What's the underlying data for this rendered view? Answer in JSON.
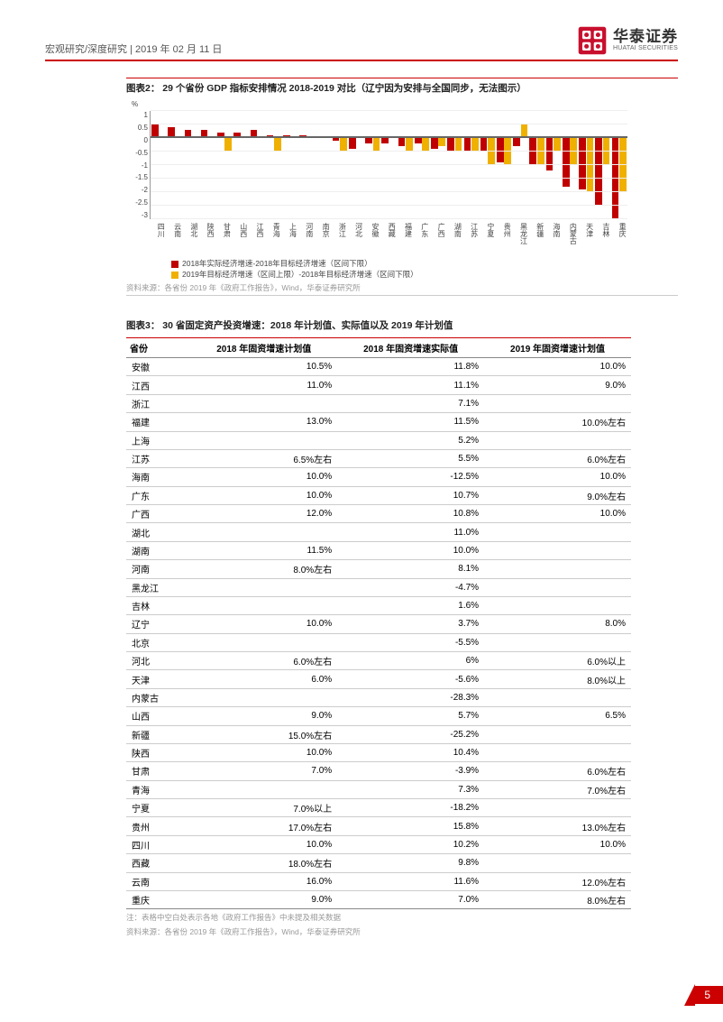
{
  "header": {
    "breadcrumb": "宏观研究/深度研究  | 2019 年 02 月 11 日",
    "brand_cn": "华泰证券",
    "brand_en": "HUATAI SECURITIES"
  },
  "chart2": {
    "title": "图表2：  29 个省份 GDP 指标安排情况 2018-2019 对比（辽宁因为安排与全国同步，无法图示）",
    "type": "bar",
    "y_unit": "%",
    "ylim": [
      -3,
      1
    ],
    "ytick_step": 0.5,
    "yticks": [
      "1",
      "0.5",
      "0",
      "-0.5",
      "-1",
      "-1.5",
      "-2",
      "-2.5",
      "-3"
    ],
    "zero_frac_from_bottom": 0.75,
    "colors": {
      "series1": "#c00000",
      "series2": "#f0b000",
      "grid": "#eeeeee",
      "axis": "#999999"
    },
    "categories": [
      "四川",
      "云南",
      "湖北",
      "陕西",
      "甘肃",
      "山西",
      "江西",
      "青海",
      "上海",
      "河南",
      "南京",
      "浙江",
      "河北",
      "安徽",
      "西藏",
      "福建",
      "广东",
      "广西",
      "湖南",
      "江苏",
      "宁夏",
      "贵州",
      "黑龙江",
      "新疆",
      "海南",
      "内蒙古",
      "天津",
      "吉林",
      "重庆"
    ],
    "series1_name": "2018年实际经济增速-2018年目标经济增速（区间下限）",
    "series2_name": "2019年目标经济增速（区间上限）-2018年目标经济增速（区间下限）",
    "series1": [
      0.5,
      0.4,
      0.3,
      0.3,
      0.2,
      0.2,
      0.3,
      0.1,
      0.1,
      0.1,
      0.0,
      -0.1,
      -0.4,
      -0.2,
      -0.2,
      -0.3,
      -0.2,
      -0.4,
      -0.5,
      -0.5,
      -0.5,
      -0.9,
      -0.3,
      -1.0,
      -1.2,
      -1.8,
      -1.9,
      -2.5,
      -3.0
    ],
    "series2": [
      0.0,
      0.0,
      0.0,
      0.0,
      -0.5,
      0.0,
      0.0,
      -0.5,
      0.0,
      0.0,
      0.0,
      -0.5,
      0.0,
      -0.5,
      0.0,
      -0.5,
      -0.5,
      -0.3,
      -0.5,
      -0.5,
      -1.0,
      -1.0,
      0.5,
      -1.0,
      -0.5,
      -1.0,
      -2.0,
      -1.0,
      -2.0
    ],
    "source": "资料来源：各省份 2019 年《政府工作报告》，Wind，华泰证券研究所"
  },
  "table3": {
    "title": "图表3：  30 省固定资产投资增速：2018 年计划值、实际值以及 2019 年计划值",
    "columns": [
      "省份",
      "2018 年固资增速计划值",
      "2018 年固资增速实际值",
      "2019 年固资增速计划值"
    ],
    "rows": [
      [
        "安徽",
        "10.5%",
        "11.8%",
        "10.0%"
      ],
      [
        "江西",
        "11.0%",
        "11.1%",
        "9.0%"
      ],
      [
        "浙江",
        "",
        "7.1%",
        ""
      ],
      [
        "福建",
        "13.0%",
        "11.5%",
        "10.0%左右"
      ],
      [
        "上海",
        "",
        "5.2%",
        ""
      ],
      [
        "江苏",
        "6.5%左右",
        "5.5%",
        "6.0%左右"
      ],
      [
        "海南",
        "10.0%",
        "-12.5%",
        "10.0%"
      ],
      [
        "广东",
        "10.0%",
        "10.7%",
        "9.0%左右"
      ],
      [
        "广西",
        "12.0%",
        "10.8%",
        "10.0%"
      ],
      [
        "湖北",
        "",
        "11.0%",
        ""
      ],
      [
        "湖南",
        "11.5%",
        "10.0%",
        ""
      ],
      [
        "河南",
        "8.0%左右",
        "8.1%",
        ""
      ],
      [
        "黑龙江",
        "",
        "-4.7%",
        ""
      ],
      [
        "吉林",
        "",
        "1.6%",
        ""
      ],
      [
        "辽宁",
        "10.0%",
        "3.7%",
        "8.0%"
      ],
      [
        "北京",
        "",
        "-5.5%",
        ""
      ],
      [
        "河北",
        "6.0%左右",
        "6%",
        "6.0%以上"
      ],
      [
        "天津",
        "6.0%",
        "-5.6%",
        "8.0%以上"
      ],
      [
        "内蒙古",
        "",
        "-28.3%",
        ""
      ],
      [
        "山西",
        "9.0%",
        "5.7%",
        "6.5%"
      ],
      [
        "新疆",
        "15.0%左右",
        "-25.2%",
        ""
      ],
      [
        "陕西",
        "10.0%",
        "10.4%",
        ""
      ],
      [
        "甘肃",
        "7.0%",
        "-3.9%",
        "6.0%左右"
      ],
      [
        "青海",
        "",
        "7.3%",
        "7.0%左右"
      ],
      [
        "宁夏",
        "7.0%以上",
        "-18.2%",
        ""
      ],
      [
        "贵州",
        "17.0%左右",
        "15.8%",
        "13.0%左右"
      ],
      [
        "四川",
        "10.0%",
        "10.2%",
        "10.0%"
      ],
      [
        "西藏",
        "18.0%左右",
        "9.8%",
        ""
      ],
      [
        "云南",
        "16.0%",
        "11.6%",
        "12.0%左右"
      ],
      [
        "重庆",
        "9.0%",
        "7.0%",
        "8.0%左右"
      ]
    ],
    "note1": "注：表格中空白处表示各地《政府工作报告》中未提及相关数据",
    "note2": "资料来源：各省份 2019 年《政府工作报告》，Wind，华泰证券研究所"
  },
  "footer": {
    "page": "5"
  }
}
